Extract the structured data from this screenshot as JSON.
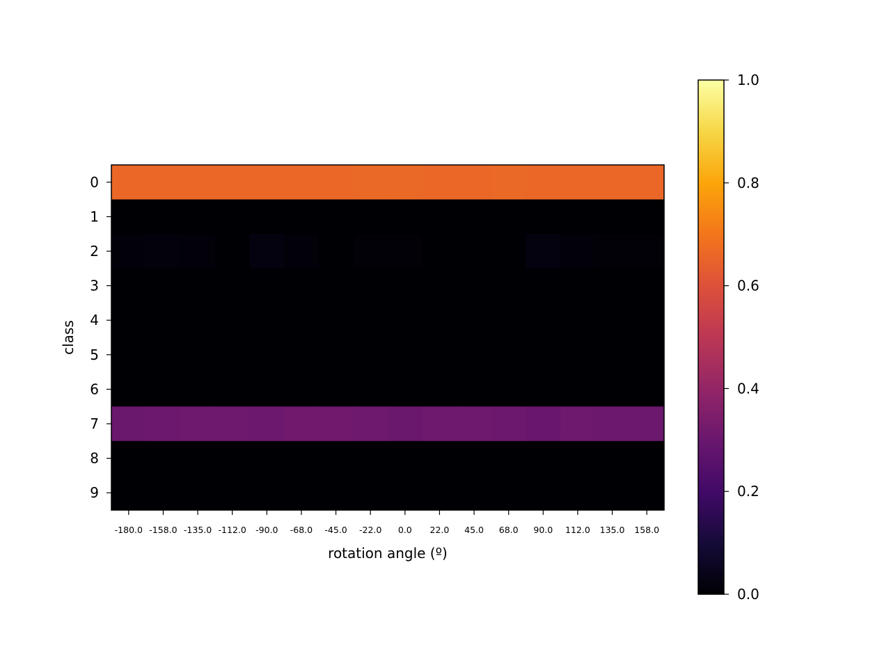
{
  "chart_data": {
    "type": "heatmap",
    "title": "",
    "xlabel": "rotation angle (º)",
    "ylabel": "class",
    "x_tick_labels": [
      "-180.0",
      "-158.0",
      "-135.0",
      "-112.0",
      "-90.0",
      "-68.0",
      "-45.0",
      "-22.0",
      "0.0",
      "22.0",
      "45.0",
      "68.0",
      "90.0",
      "112.0",
      "135.0",
      "158.0"
    ],
    "y_tick_labels": [
      "0",
      "1",
      "2",
      "3",
      "4",
      "5",
      "6",
      "7",
      "8",
      "9"
    ],
    "colormap": "inferno",
    "vmin": 0.0,
    "vmax": 1.0,
    "colorbar_ticks": [
      "0.0",
      "0.2",
      "0.4",
      "0.6",
      "0.8",
      "1.0"
    ],
    "values": [
      [
        0.66,
        0.66,
        0.66,
        0.66,
        0.66,
        0.66,
        0.66,
        0.665,
        0.665,
        0.66,
        0.66,
        0.665,
        0.66,
        0.66,
        0.66,
        0.66
      ],
      [
        0.0,
        0.0,
        0.0,
        0.0,
        0.0,
        0.0,
        0.0,
        0.0,
        0.0,
        0.0,
        0.0,
        0.0,
        0.0,
        0.0,
        0.0,
        0.0
      ],
      [
        0.01,
        0.015,
        0.01,
        0.0,
        0.02,
        0.01,
        0.0,
        0.005,
        0.005,
        0.0,
        0.0,
        0.0,
        0.02,
        0.01,
        0.005,
        0.005
      ],
      [
        0.0,
        0.0,
        0.0,
        0.0,
        0.0,
        0.0,
        0.0,
        0.0,
        0.0,
        0.0,
        0.0,
        0.0,
        0.0,
        0.0,
        0.0,
        0.0
      ],
      [
        0.0,
        0.0,
        0.0,
        0.0,
        0.0,
        0.0,
        0.0,
        0.0,
        0.0,
        0.0,
        0.0,
        0.0,
        0.0,
        0.0,
        0.0,
        0.0
      ],
      [
        0.0,
        0.0,
        0.0,
        0.0,
        0.0,
        0.0,
        0.0,
        0.0,
        0.0,
        0.0,
        0.0,
        0.0,
        0.0,
        0.0,
        0.0,
        0.0
      ],
      [
        0.0,
        0.0,
        0.0,
        0.0,
        0.0,
        0.0,
        0.0,
        0.0,
        0.0,
        0.0,
        0.0,
        0.0,
        0.0,
        0.0,
        0.0,
        0.0
      ],
      [
        0.3,
        0.305,
        0.31,
        0.31,
        0.305,
        0.315,
        0.315,
        0.31,
        0.3,
        0.31,
        0.31,
        0.305,
        0.295,
        0.31,
        0.305,
        0.305
      ],
      [
        0.0,
        0.0,
        0.0,
        0.0,
        0.0,
        0.0,
        0.0,
        0.0,
        0.0,
        0.0,
        0.0,
        0.0,
        0.0,
        0.0,
        0.0,
        0.0
      ],
      [
        0.0,
        0.0,
        0.0,
        0.0,
        0.0,
        0.0,
        0.0,
        0.0,
        0.0,
        0.0,
        0.0,
        0.0,
        0.0,
        0.0,
        0.0,
        0.0
      ]
    ],
    "grid": false
  }
}
